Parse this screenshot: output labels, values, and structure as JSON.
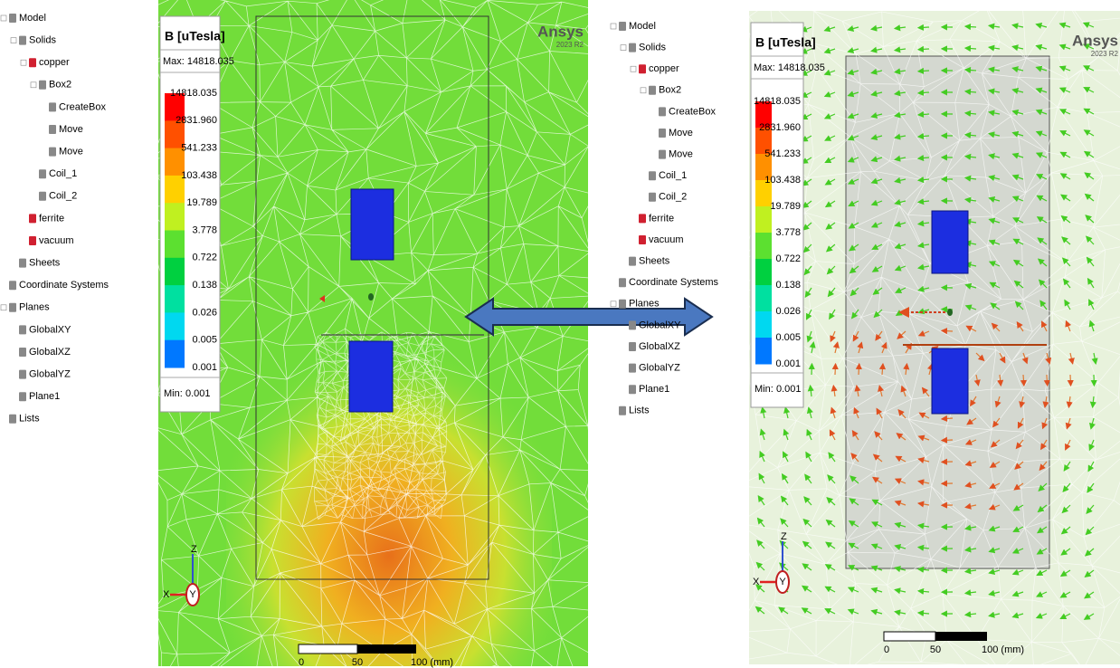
{
  "left_window": {
    "tree": [
      {
        "label": "Model",
        "children": [
          {
            "label": "Solids",
            "children": [
              {
                "label": "copper",
                "children": [
                  {
                    "label": "Box2",
                    "children": [
                      {
                        "label": "CreateBox"
                      },
                      {
                        "label": "Move"
                      },
                      {
                        "label": "Move"
                      }
                    ]
                  },
                  {
                    "label": "Coil_1"
                  },
                  {
                    "label": "Coil_2"
                  }
                ]
              },
              {
                "label": "ferrite"
              },
              {
                "label": "vacuum"
              }
            ]
          },
          {
            "label": "Sheets"
          }
        ]
      },
      {
        "label": "Coordinate Systems"
      },
      {
        "label": "Planes",
        "children": [
          {
            "label": "GlobalXY"
          },
          {
            "label": "GlobalXZ"
          },
          {
            "label": "GlobalYZ"
          },
          {
            "label": "Plane1"
          }
        ]
      },
      {
        "label": "Lists"
      }
    ],
    "legend": {
      "title": "B [uTesla]",
      "max": "Max: 14818.035",
      "levels": [
        "14818.035",
        "2831.960",
        "541.233",
        "103.438",
        "19.789",
        "3.778",
        "0.722",
        "0.138",
        "0.026",
        "0.005",
        "0.001"
      ],
      "min_label": "Min:",
      "min_value": "0.001"
    },
    "logo": "Ansys",
    "version": "2023 R2",
    "scale_bar": [
      "0",
      "50",
      "100 (mm)"
    ],
    "axes": [
      "Z",
      "X",
      "Y"
    ]
  },
  "right_window": {
    "tree": [
      {
        "label": "Model",
        "children": [
          {
            "label": "Solids",
            "children": [
              {
                "label": "copper",
                "children": [
                  {
                    "label": "Box2",
                    "children": [
                      {
                        "label": "CreateBox"
                      },
                      {
                        "label": "Move"
                      },
                      {
                        "label": "Move"
                      }
                    ]
                  },
                  {
                    "label": "Coil_1"
                  },
                  {
                    "label": "Coil_2"
                  }
                ]
              },
              {
                "label": "ferrite"
              },
              {
                "label": "vacuum"
              }
            ]
          },
          {
            "label": "Sheets"
          }
        ]
      },
      {
        "label": "Coordinate Systems"
      },
      {
        "label": "Planes",
        "children": [
          {
            "label": "GlobalXY"
          },
          {
            "label": "GlobalXZ"
          },
          {
            "label": "GlobalYZ"
          },
          {
            "label": "Plane1"
          }
        ]
      },
      {
        "label": "Lists"
      }
    ],
    "legend": {
      "title": "B [uTesla]",
      "max": "Max: 14818.035",
      "levels": [
        "14818.035",
        "2831.960",
        "541.233",
        "103.438",
        "19.789",
        "3.778",
        "0.722",
        "0.138",
        "0.026",
        "0.005",
        "0.001"
      ],
      "min_label": "Min:",
      "min_value": "0.001"
    },
    "logo": "Ansys",
    "version": "2023 R2",
    "scale_bar": [
      "0",
      "50",
      "100 (mm)"
    ],
    "axes": [
      "Z",
      "X",
      "Y"
    ]
  }
}
